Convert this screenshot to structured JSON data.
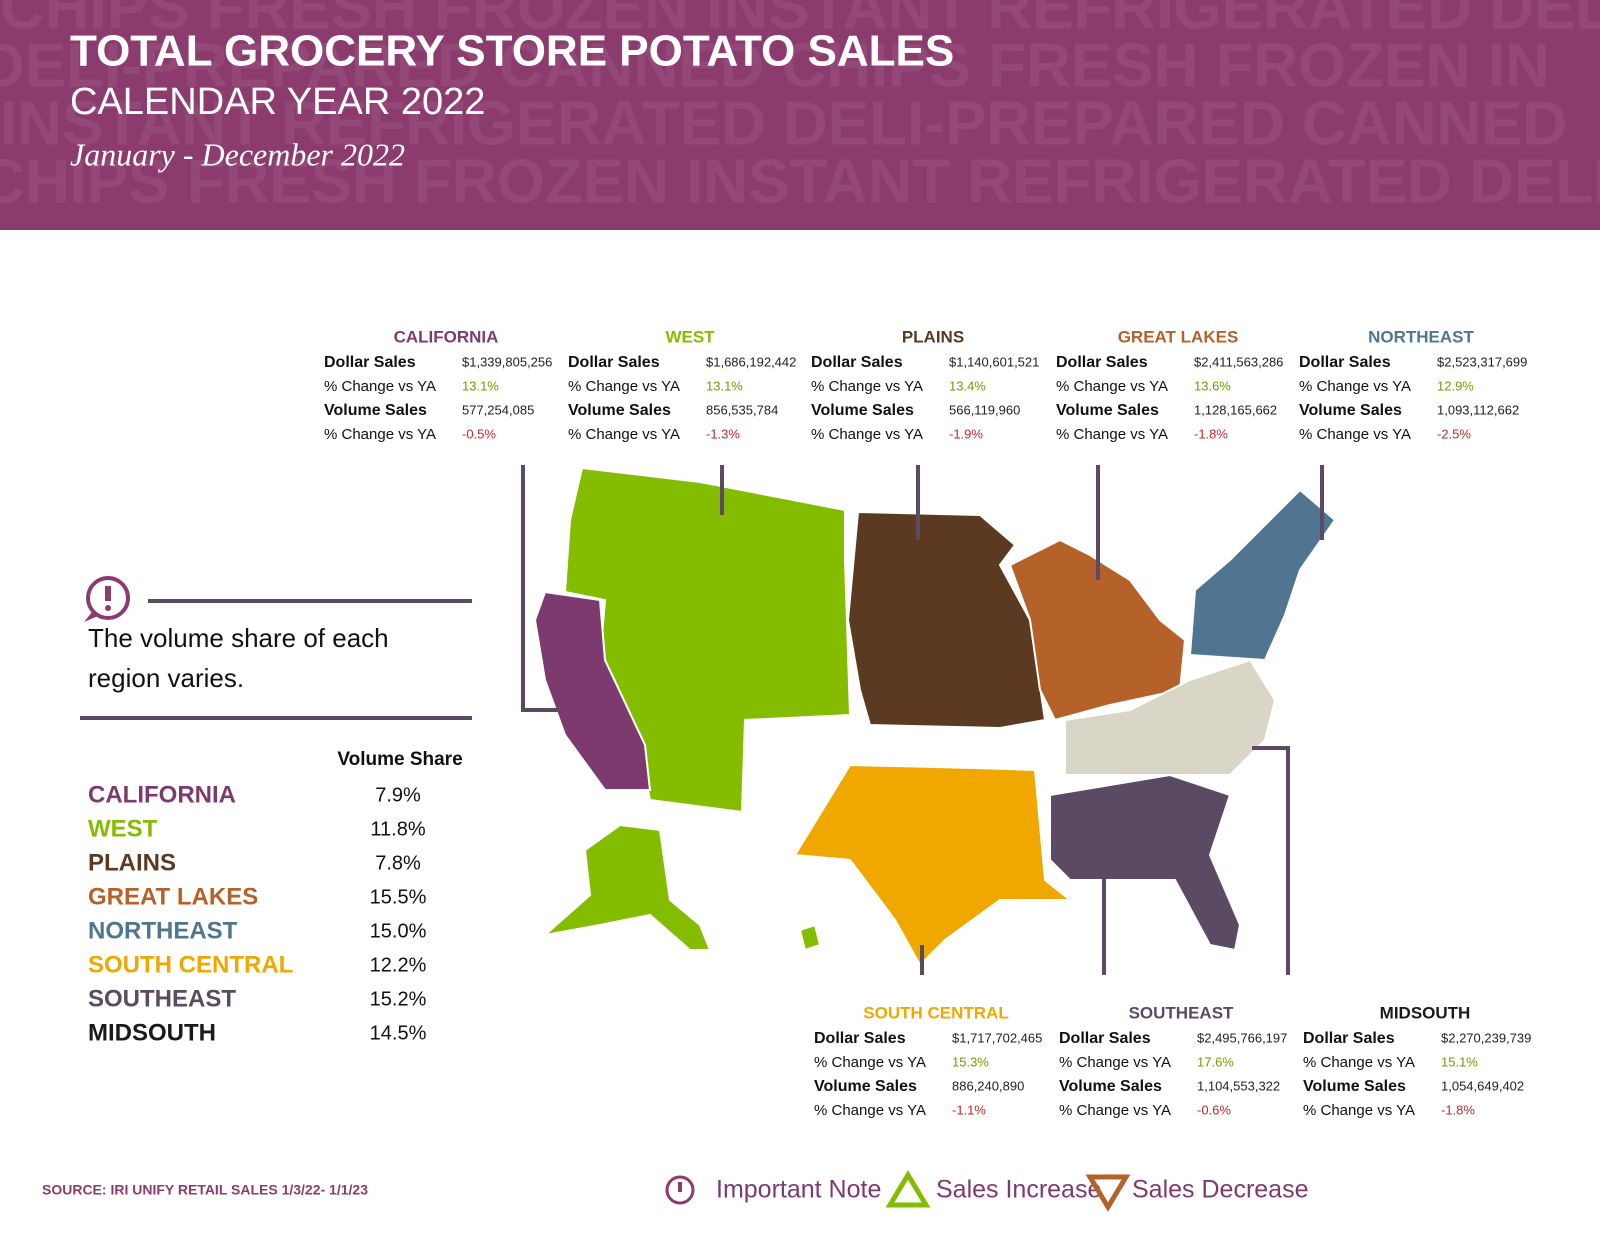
{
  "header": {
    "title": "TOTAL GROCERY STORE POTATO SALES",
    "subtitle": "CALENDAR YEAR 2022",
    "date": "January - December 2022",
    "watermark": [
      "CHIPS FRESH FROZEN INSTANT REFRIGERATED DELI",
      "DELI-PREPARED CANNED CHIPS FRESH FROZEN IN",
      "INSTANT REFRIGERATED DELI-PREPARED CANNED",
      "CHIPS FRESH FROZEN INSTANT REFRIGERATED DELI"
    ]
  },
  "stat_labels": {
    "dollar": "Dollar Sales",
    "change": "% Change vs YA",
    "volume": "Volume Sales"
  },
  "regions": [
    {
      "name": "CALIFORNIA",
      "color": "#7d3a6f",
      "dollar_sales": "$1,339,805,256",
      "dollar_change": "13.1%",
      "volume_sales": "577,254,085",
      "volume_change": "-0.5%"
    },
    {
      "name": "WEST",
      "color": "#84bd00",
      "dollar_sales": "$1,686,192,442",
      "dollar_change": "13.1%",
      "volume_sales": "856,535,784",
      "volume_change": "-1.3%"
    },
    {
      "name": "PLAINS",
      "color": "#5c3a21",
      "dollar_sales": "$1,140,601,521",
      "dollar_change": "13.4%",
      "volume_sales": "566,119,960",
      "volume_change": "-1.9%"
    },
    {
      "name": "GREAT LAKES",
      "color": "#b5622a",
      "dollar_sales": "$2,411,563,286",
      "dollar_change": "13.6%",
      "volume_sales": "1,128,165,662",
      "volume_change": "-1.8%"
    },
    {
      "name": "NORTHEAST",
      "color": "#4f7590",
      "dollar_sales": "$2,523,317,699",
      "dollar_change": "12.9%",
      "volume_sales": "1,093,112,662",
      "volume_change": "-2.5%"
    },
    {
      "name": "SOUTH CENTRAL",
      "color": "#f0a800",
      "dollar_sales": "$1,717,702,465",
      "dollar_change": "15.3%",
      "volume_sales": "886,240,890",
      "volume_change": "-1.1%"
    },
    {
      "name": "SOUTHEAST",
      "color": "#5a4a63",
      "dollar_sales": "$2,495,766,197",
      "dollar_change": "17.6%",
      "volume_sales": "1,104,553,322",
      "volume_change": "-0.6%"
    },
    {
      "name": "MIDSOUTH",
      "color": "#1a1a1a",
      "dollar_sales": "$2,270,239,739",
      "dollar_change": "15.1%",
      "volume_sales": "1,054,649,402",
      "volume_change": "-1.8%"
    }
  ],
  "note": "The volume share of each region varies.",
  "volume_share": {
    "header": "Volume Share",
    "rows": [
      [
        "CALIFORNIA",
        "7.9%"
      ],
      [
        "WEST",
        "11.8%"
      ],
      [
        "PLAINS",
        "7.8%"
      ],
      [
        "GREAT LAKES",
        "15.5%"
      ],
      [
        "NORTHEAST",
        "15.0%"
      ],
      [
        "SOUTH CENTRAL",
        "12.2%"
      ],
      [
        "SOUTHEAST",
        "15.2%"
      ],
      [
        "MIDSOUTH",
        "14.5%"
      ]
    ]
  },
  "source": "SOURCE: IRI UNIFY RETAIL SALES 1/3/22- 1/1/23",
  "legend": [
    "Important Note",
    "Sales Increase",
    "Sales Decrease"
  ]
}
